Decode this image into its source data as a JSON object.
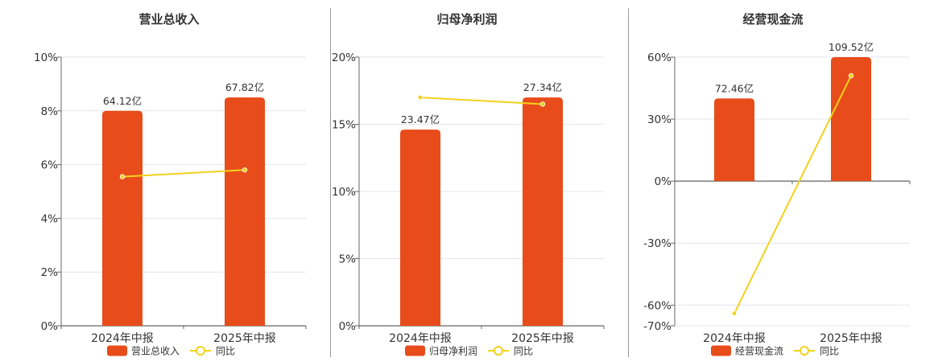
{
  "chart_data": [
    {
      "type": "bar",
      "title": "营业总收入",
      "categories": [
        "2024年中报",
        "2025年中报"
      ],
      "bar_labels": [
        "64.12亿",
        "67.82亿"
      ],
      "series": [
        {
          "name": "营业总收入",
          "kind": "bar",
          "axis": "left",
          "values": [
            8.0,
            8.5
          ]
        },
        {
          "name": "同比",
          "kind": "line",
          "axis": "left",
          "values": [
            5.55,
            5.8
          ]
        }
      ],
      "yticks": [
        "0%",
        "2%",
        "4%",
        "6%",
        "8%",
        "10%"
      ],
      "ylim": [
        0,
        10
      ],
      "legend": "bottom-center",
      "grid": true
    },
    {
      "type": "bar",
      "title": "归母净利润",
      "categories": [
        "2024年中报",
        "2025年中报"
      ],
      "bar_labels": [
        "23.47亿",
        "27.34亿"
      ],
      "series": [
        {
          "name": "归母净利润",
          "kind": "bar",
          "axis": "left",
          "values": [
            14.6,
            17.0
          ]
        },
        {
          "name": "同比",
          "kind": "line",
          "axis": "left",
          "values": [
            17.0,
            16.5
          ]
        }
      ],
      "yticks": [
        "0%",
        "5%",
        "10%",
        "15%",
        "20%"
      ],
      "ylim": [
        0,
        20
      ],
      "legend": "bottom-center",
      "grid": true
    },
    {
      "type": "bar",
      "title": "经营现金流",
      "categories": [
        "2024年中报",
        "2025年中报"
      ],
      "bar_labels": [
        "72.46亿",
        "109.52亿"
      ],
      "series": [
        {
          "name": "经营现金流",
          "kind": "bar",
          "axis": "left",
          "values": [
            40,
            60
          ]
        },
        {
          "name": "同比",
          "kind": "line",
          "axis": "left",
          "values": [
            -64,
            51
          ]
        }
      ],
      "yticks": [
        "-70%",
        "-60%",
        "-30%",
        "0%",
        "30%",
        "60%"
      ],
      "ylim": [
        -70,
        60
      ],
      "legend": "bottom-center",
      "grid": true
    }
  ],
  "colors": {
    "bar": "#e84c1a",
    "line": "#f2d21b",
    "grid": "#e3e6ee",
    "axis": "#666666",
    "text": "#333333"
  }
}
